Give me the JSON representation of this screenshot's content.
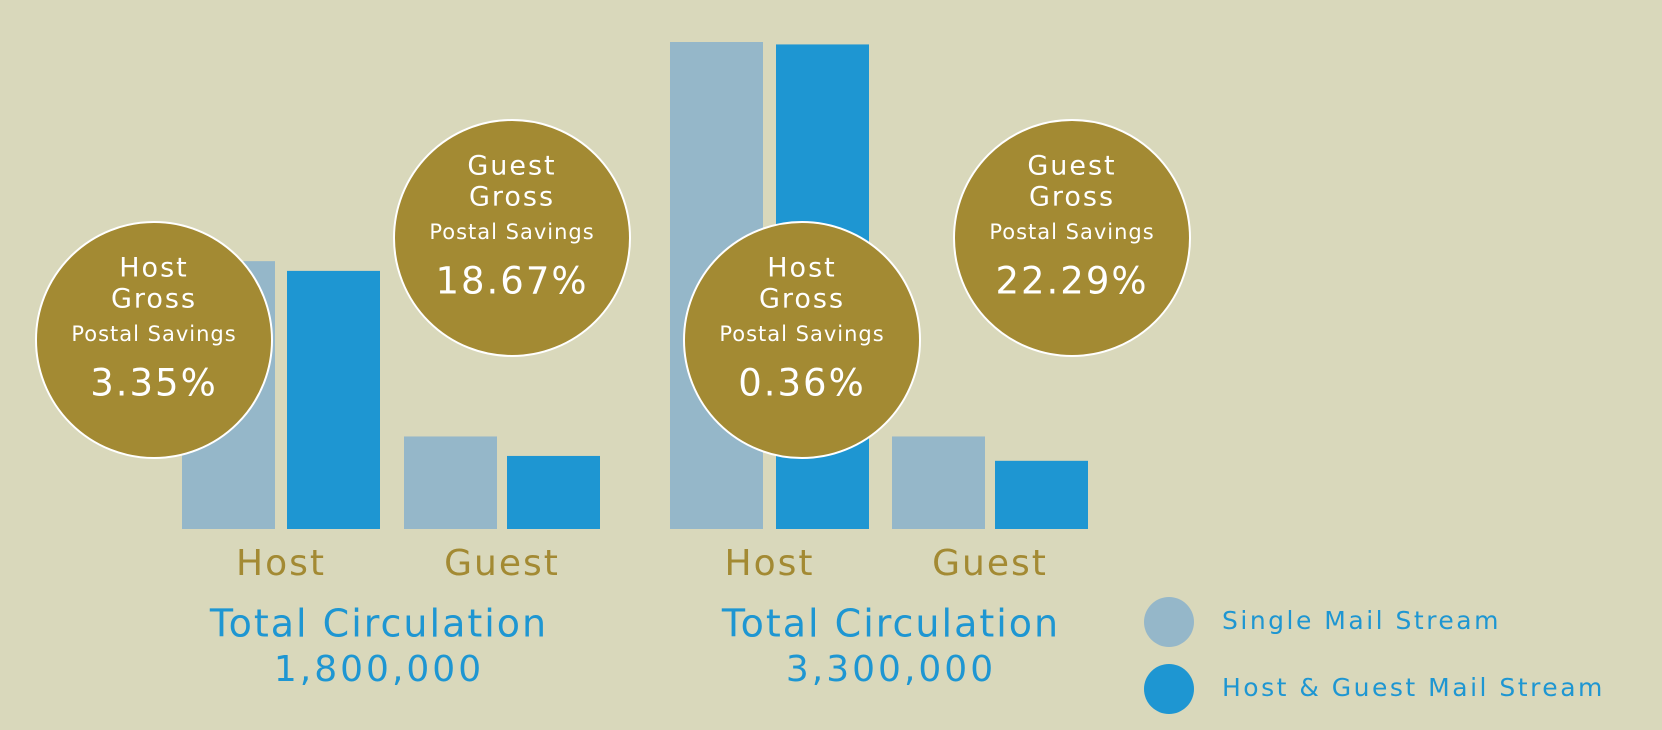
{
  "chart_data": {
    "type": "bar",
    "ylim": [
      0,
      100
    ],
    "categories": [
      "Host",
      "Guest",
      "Host",
      "Guest"
    ],
    "series": [
      {
        "name": "Single Mail Stream",
        "color": "#95b7c9",
        "values": [
          55,
          19,
          100,
          19
        ]
      },
      {
        "name": "Host & Guest Mail Stream",
        "color": "#1e96d2",
        "values": [
          53,
          15,
          99.5,
          14
        ]
      }
    ],
    "panels": [
      {
        "title": "Total Circulation",
        "subtitle": "1,800,000",
        "annotations": [
          {
            "label": [
              "Host",
              "Gross"
            ],
            "sublabel": "Postal Savings",
            "value": 3.35,
            "value_label": "3.35%"
          },
          {
            "label": [
              "Guest",
              "Gross"
            ],
            "sublabel": "Postal Savings",
            "value": 18.67,
            "value_label": "18.67%"
          }
        ]
      },
      {
        "title": "Total Circulation",
        "subtitle": "3,300,000",
        "annotations": [
          {
            "label": [
              "Host",
              "Gross"
            ],
            "sublabel": "Postal Savings",
            "value": 0.36,
            "value_label": "0.36%"
          },
          {
            "label": [
              "Guest",
              "Gross"
            ],
            "sublabel": "Postal Savings",
            "value": 22.29,
            "value_label": "22.29%"
          }
        ]
      }
    ]
  }
}
